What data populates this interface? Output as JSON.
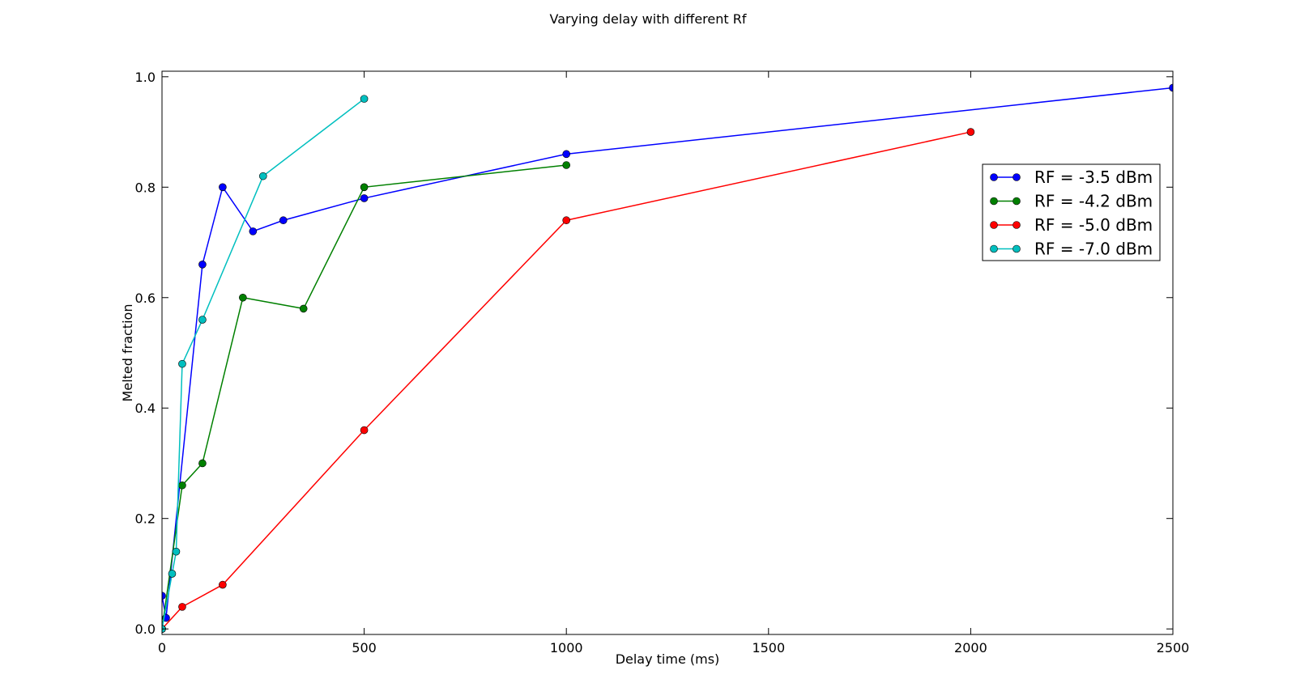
{
  "chart_data": {
    "type": "line",
    "title": "Varying delay with different Rf",
    "xlabel": "Delay time (ms)",
    "ylabel": "Melted fraction",
    "xlim": [
      0,
      2500
    ],
    "ylim": [
      -0.01,
      1.01
    ],
    "xticks": [
      0,
      500,
      1000,
      1500,
      2000,
      2500
    ],
    "xtick_labels": [
      "0",
      "500",
      "1000",
      "1500",
      "2000",
      "2500"
    ],
    "yticks": [
      0.0,
      0.2,
      0.4,
      0.6,
      0.8,
      1.0
    ],
    "ytick_labels": [
      "0.0",
      "0.2",
      "0.4",
      "0.6",
      "0.8",
      "1.0"
    ],
    "grid": false,
    "legend_position": "upper-right",
    "series": [
      {
        "name": "RF = -3.5 dBm",
        "color": "#0000ff",
        "points": [
          [
            0,
            0.06
          ],
          [
            10,
            0.02
          ],
          [
            100,
            0.66
          ],
          [
            150,
            0.8
          ],
          [
            225,
            0.72
          ],
          [
            300,
            0.74
          ],
          [
            500,
            0.78
          ],
          [
            1000,
            0.86
          ],
          [
            2500,
            0.98
          ]
        ]
      },
      {
        "name": "RF = -4.2 dBm",
        "color": "#008000",
        "points": [
          [
            0,
            0.0
          ],
          [
            50,
            0.26
          ],
          [
            100,
            0.3
          ],
          [
            200,
            0.6
          ],
          [
            350,
            0.58
          ],
          [
            500,
            0.8
          ],
          [
            1000,
            0.84
          ]
        ]
      },
      {
        "name": "RF = -5.0 dBm",
        "color": "#ff0000",
        "points": [
          [
            0,
            0.0
          ],
          [
            50,
            0.04
          ],
          [
            150,
            0.08
          ],
          [
            500,
            0.36
          ],
          [
            1000,
            0.74
          ],
          [
            2000,
            0.9
          ]
        ]
      },
      {
        "name": "RF = -7.0 dBm",
        "color": "#00bfbf",
        "points": [
          [
            0,
            0.0
          ],
          [
            25,
            0.1
          ],
          [
            35,
            0.14
          ],
          [
            50,
            0.48
          ],
          [
            100,
            0.56
          ],
          [
            250,
            0.82
          ],
          [
            500,
            0.96
          ]
        ]
      }
    ]
  }
}
